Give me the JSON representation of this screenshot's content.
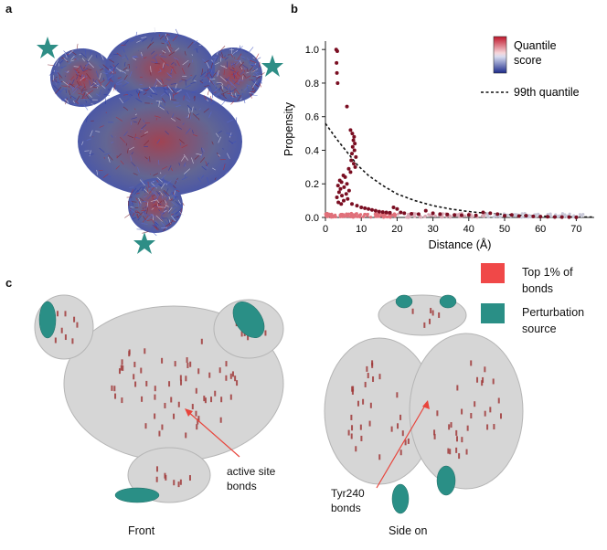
{
  "panels": {
    "a": {
      "letter": "a"
    },
    "b": {
      "letter": "b",
      "legend": {
        "colorbar_label_line1": "Quantile",
        "colorbar_label_line2": "score",
        "dashed_label": "99th quantile"
      }
    },
    "c": {
      "letter": "c",
      "legend": {
        "top_label_line1": "Top 1% of",
        "top_label_line2": "bonds",
        "source_label_line1": "Perturbation",
        "source_label_line2": "source"
      },
      "annotations": {
        "active_line1": "active site",
        "active_line2": "bonds",
        "tyr_line1": "Tyr240",
        "tyr_line2": "bonds"
      },
      "captions": {
        "front": "Front",
        "side": "Side on"
      }
    }
  },
  "colors": {
    "top_bonds": "#f04848",
    "perturbation": "#2a8f86",
    "star": "#2e8e86",
    "points": "#7a0e22"
  },
  "chart_data": {
    "type": "scatter",
    "xlabel": "Distance (Å)",
    "ylabel": "Propensity",
    "xlim": [
      0,
      75
    ],
    "ylim": [
      0,
      1.05
    ],
    "xticks": [
      "0",
      "10",
      "20",
      "30",
      "40",
      "50",
      "60",
      "70"
    ],
    "yticks": [
      "0.0",
      "0.2",
      "0.4",
      "0.6",
      "0.8",
      "1.0"
    ],
    "grid": false,
    "legend": "top-right",
    "dashed_curve": {
      "name": "99th quantile",
      "points": [
        [
          0,
          0.56
        ],
        [
          3,
          0.47
        ],
        [
          6,
          0.39
        ],
        [
          9,
          0.31
        ],
        [
          12,
          0.25
        ],
        [
          16,
          0.19
        ],
        [
          20,
          0.14
        ],
        [
          25,
          0.1
        ],
        [
          30,
          0.07
        ],
        [
          35,
          0.05
        ],
        [
          40,
          0.035
        ],
        [
          45,
          0.025
        ],
        [
          50,
          0.018
        ],
        [
          55,
          0.012
        ],
        [
          60,
          0.008
        ],
        [
          65,
          0.005
        ],
        [
          70,
          0.003
        ],
        [
          75,
          0.002
        ]
      ]
    },
    "points": [
      [
        3,
        1.0
      ],
      [
        3.3,
        0.99
      ],
      [
        3.1,
        0.92
      ],
      [
        3.2,
        0.86
      ],
      [
        3.4,
        0.8
      ],
      [
        6,
        0.66
      ],
      [
        7,
        0.52
      ],
      [
        7.5,
        0.5
      ],
      [
        8,
        0.48
      ],
      [
        7.8,
        0.46
      ],
      [
        8.2,
        0.44
      ],
      [
        7.6,
        0.42
      ],
      [
        8.1,
        0.4
      ],
      [
        7.4,
        0.38
      ],
      [
        8.5,
        0.36
      ],
      [
        7.2,
        0.34
      ],
      [
        7.9,
        0.32
      ],
      [
        8.3,
        0.3
      ],
      [
        6.5,
        0.29
      ],
      [
        7,
        0.27
      ],
      [
        5,
        0.25
      ],
      [
        5.5,
        0.24
      ],
      [
        4,
        0.22
      ],
      [
        4.5,
        0.21
      ],
      [
        6,
        0.2
      ],
      [
        3.5,
        0.19
      ],
      [
        5.2,
        0.18
      ],
      [
        4.2,
        0.17
      ],
      [
        6.6,
        0.16
      ],
      [
        3.8,
        0.15
      ],
      [
        5.8,
        0.14
      ],
      [
        4.6,
        0.13
      ],
      [
        3.2,
        0.12
      ],
      [
        6.2,
        0.11
      ],
      [
        5.1,
        0.1
      ],
      [
        3.6,
        0.09
      ],
      [
        7.4,
        0.08
      ],
      [
        4.4,
        0.08
      ],
      [
        8.8,
        0.07
      ],
      [
        10,
        0.06
      ],
      [
        11,
        0.055
      ],
      [
        12,
        0.05
      ],
      [
        13,
        0.045
      ],
      [
        14,
        0.04
      ],
      [
        15,
        0.035
      ],
      [
        16,
        0.032
      ],
      [
        17,
        0.03
      ],
      [
        18,
        0.028
      ],
      [
        19,
        0.06
      ],
      [
        20,
        0.05
      ],
      [
        21,
        0.03
      ],
      [
        22,
        0.025
      ],
      [
        24,
        0.022
      ],
      [
        26,
        0.02
      ],
      [
        28,
        0.04
      ],
      [
        30,
        0.025
      ],
      [
        32,
        0.02
      ],
      [
        34,
        0.018
      ],
      [
        36,
        0.015
      ],
      [
        38,
        0.013
      ],
      [
        40,
        0.015
      ],
      [
        42,
        0.012
      ],
      [
        44,
        0.03
      ],
      [
        46,
        0.025
      ],
      [
        48,
        0.02
      ],
      [
        50,
        0.01
      ],
      [
        52,
        0.015
      ],
      [
        54,
        0.008
      ],
      [
        56,
        0.01
      ],
      [
        58,
        0.006
      ],
      [
        60,
        0.005
      ],
      [
        62,
        0.004
      ],
      [
        64,
        0.003
      ],
      [
        66,
        0.002
      ],
      [
        68,
        0.002
      ],
      [
        70,
        0.001
      ]
    ]
  }
}
